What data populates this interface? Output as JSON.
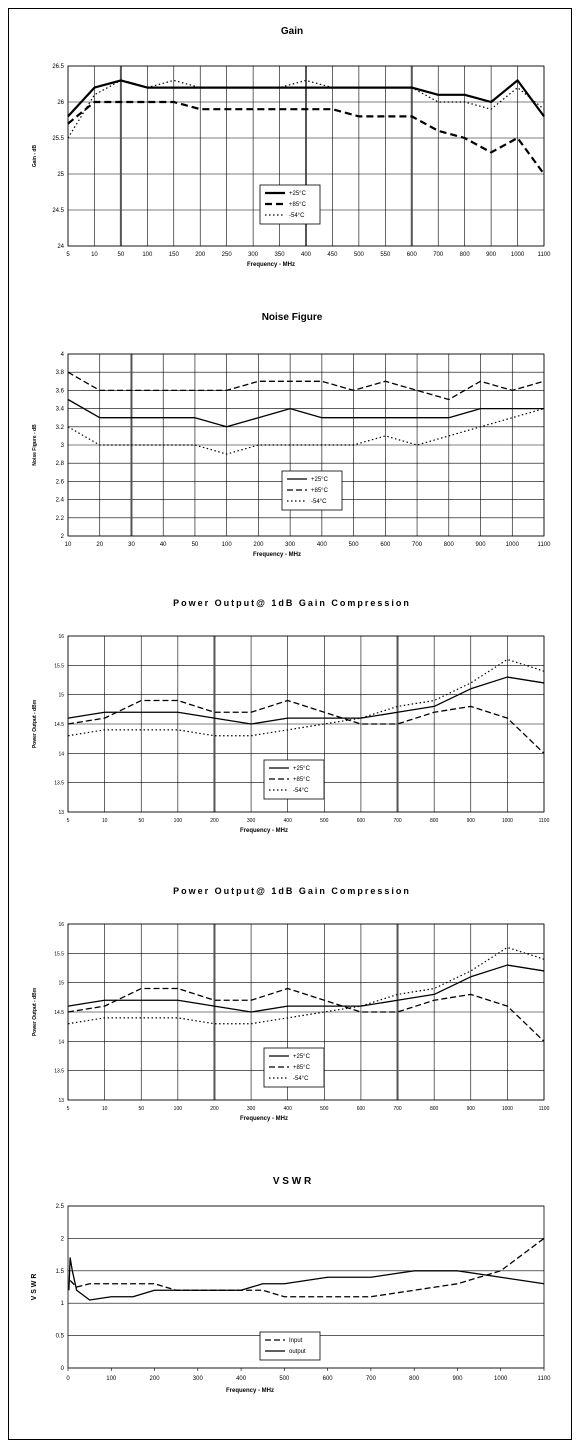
{
  "chart_data": [
    {
      "type": "line",
      "title": "Gain",
      "xlabel": "Frequency - MHz",
      "ylabel": "Gain - dB",
      "categories": [
        "5",
        "10",
        "50",
        "100",
        "150",
        "200",
        "250",
        "300",
        "350",
        "400",
        "450",
        "500",
        "550",
        "600",
        "700",
        "800",
        "900",
        "1000",
        "1100"
      ],
      "yticks": [
        "26.5",
        "26",
        "25.5",
        "25",
        "24.5",
        "24"
      ],
      "ylim": [
        24,
        26.5
      ],
      "grid": true,
      "legend_position": "center",
      "series": [
        {
          "name": "+25°C",
          "style": "solid-thick",
          "values": [
            25.8,
            26.2,
            26.3,
            26.2,
            26.2,
            26.2,
            26.2,
            26.2,
            26.2,
            26.2,
            26.2,
            26.2,
            26.2,
            26.2,
            26.1,
            26.1,
            26.0,
            26.3,
            25.8
          ]
        },
        {
          "name": "+85°C",
          "style": "dashed-thick",
          "values": [
            25.7,
            26.0,
            26.0,
            26.0,
            26.0,
            25.9,
            25.9,
            25.9,
            25.9,
            25.9,
            25.9,
            25.8,
            25.8,
            25.8,
            25.6,
            25.5,
            25.3,
            25.5,
            25.0
          ]
        },
        {
          "name": "-54°C",
          "style": "dotted",
          "values": [
            25.5,
            26.1,
            26.3,
            26.2,
            26.3,
            26.2,
            26.2,
            26.2,
            26.2,
            26.3,
            26.2,
            26.2,
            26.2,
            26.2,
            26.0,
            26.0,
            25.9,
            26.2,
            25.9
          ]
        }
      ]
    },
    {
      "type": "line",
      "title": "Noise Figure",
      "xlabel": "Frequency - MHz",
      "ylabel": "Noise Figure - dB",
      "categories": [
        "10",
        "20",
        "30",
        "40",
        "50",
        "100",
        "200",
        "300",
        "400",
        "500",
        "600",
        "700",
        "800",
        "900",
        "1000",
        "1100"
      ],
      "yticks": [
        "4",
        "3.8",
        "3.6",
        "3.4",
        "3.2",
        "3",
        "2.8",
        "2.6",
        "2.4",
        "2.2",
        "2"
      ],
      "ylim": [
        2,
        4
      ],
      "grid": true,
      "legend_position": "bottom-center",
      "series": [
        {
          "name": "+25°C",
          "style": "solid",
          "values": [
            3.5,
            3.3,
            3.3,
            3.3,
            3.3,
            3.2,
            3.3,
            3.4,
            3.3,
            3.3,
            3.3,
            3.3,
            3.3,
            3.4,
            3.4,
            3.4
          ]
        },
        {
          "name": "+85°C",
          "style": "dashed",
          "values": [
            3.8,
            3.6,
            3.6,
            3.6,
            3.6,
            3.6,
            3.7,
            3.7,
            3.7,
            3.6,
            3.7,
            3.6,
            3.5,
            3.7,
            3.6,
            3.7
          ]
        },
        {
          "name": "-54°C",
          "style": "dotted",
          "values": [
            3.2,
            3.0,
            3.0,
            3.0,
            3.0,
            2.9,
            3.0,
            3.0,
            3.0,
            3.0,
            3.1,
            3.0,
            3.1,
            3.2,
            3.3,
            3.4
          ]
        }
      ]
    },
    {
      "type": "line",
      "title": "Power Output@ 1dB Gain Compression",
      "xlabel": "Frequency - MHz",
      "ylabel": "Power Output - dBm",
      "categories": [
        "5",
        "10",
        "50",
        "100",
        "200",
        "300",
        "400",
        "500",
        "600",
        "700",
        "800",
        "900",
        "1000",
        "1100"
      ],
      "yticks": [
        "16",
        "15.5",
        "15",
        "14.5",
        "14",
        "13.5",
        "13"
      ],
      "ylim": [
        13,
        16
      ],
      "grid": true,
      "legend_position": "bottom-center",
      "series": [
        {
          "name": "+25°C",
          "style": "solid",
          "values": [
            14.6,
            14.7,
            14.7,
            14.7,
            14.6,
            14.5,
            14.6,
            14.6,
            14.6,
            14.7,
            14.8,
            15.1,
            15.3,
            15.2
          ]
        },
        {
          "name": "+85°C",
          "style": "dashed",
          "values": [
            14.5,
            14.6,
            14.9,
            14.9,
            14.7,
            14.7,
            14.9,
            14.7,
            14.5,
            14.5,
            14.7,
            14.8,
            14.6,
            14.0
          ]
        },
        {
          "name": "-54°C",
          "style": "dotted",
          "values": [
            14.3,
            14.4,
            14.4,
            14.4,
            14.3,
            14.3,
            14.4,
            14.5,
            14.6,
            14.8,
            14.9,
            15.2,
            15.6,
            15.4
          ]
        }
      ]
    },
    {
      "type": "line",
      "title": "Power Output@ 1dB Gain Compression",
      "xlabel": "Frequency - MHz",
      "ylabel": "Power Output - dBm",
      "categories": [
        "5",
        "10",
        "50",
        "100",
        "200",
        "300",
        "400",
        "500",
        "600",
        "700",
        "800",
        "900",
        "1000",
        "1100"
      ],
      "yticks": [
        "16",
        "15.5",
        "15",
        "14.5",
        "14",
        "13.5",
        "13"
      ],
      "ylim": [
        13,
        16
      ],
      "grid": true,
      "legend_position": "bottom-center",
      "series": [
        {
          "name": "+25°C",
          "style": "solid",
          "values": [
            14.6,
            14.7,
            14.7,
            14.7,
            14.6,
            14.5,
            14.6,
            14.6,
            14.6,
            14.7,
            14.8,
            15.1,
            15.3,
            15.2
          ]
        },
        {
          "name": "+85°C",
          "style": "dashed",
          "values": [
            14.5,
            14.6,
            14.9,
            14.9,
            14.7,
            14.7,
            14.9,
            14.7,
            14.5,
            14.5,
            14.7,
            14.8,
            14.6,
            14.0
          ]
        },
        {
          "name": "-54°C",
          "style": "dotted",
          "values": [
            14.3,
            14.4,
            14.4,
            14.4,
            14.3,
            14.3,
            14.4,
            14.5,
            14.6,
            14.8,
            14.9,
            15.2,
            15.6,
            15.4
          ]
        }
      ]
    },
    {
      "type": "line",
      "title": "V S W R",
      "xlabel": "Frequency - MHz",
      "ylabel": "V S W R",
      "xticks": [
        "0",
        "100",
        "200",
        "300",
        "400",
        "500",
        "600",
        "700",
        "800",
        "900",
        "1000",
        "1100"
      ],
      "yticks": [
        "2.5",
        "2",
        "1.5",
        "1",
        "0.5",
        "0"
      ],
      "xlim": [
        0,
        1100
      ],
      "ylim": [
        0,
        2.5
      ],
      "grid": "horizontal",
      "legend_position": "bottom-center",
      "series": [
        {
          "name": "Input",
          "style": "dashed",
          "x": [
            5,
            20,
            50,
            100,
            150,
            200,
            250,
            300,
            350,
            400,
            450,
            500,
            550,
            600,
            650,
            700,
            750,
            800,
            850,
            900,
            950,
            1000,
            1050,
            1100
          ],
          "y": [
            1.35,
            1.25,
            1.3,
            1.3,
            1.3,
            1.3,
            1.2,
            1.2,
            1.2,
            1.2,
            1.2,
            1.1,
            1.1,
            1.1,
            1.1,
            1.1,
            1.15,
            1.2,
            1.25,
            1.3,
            1.4,
            1.5,
            1.75,
            2.0
          ]
        },
        {
          "name": "output",
          "style": "solid",
          "x": [
            2,
            5,
            10,
            20,
            50,
            100,
            150,
            200,
            250,
            300,
            350,
            400,
            450,
            500,
            550,
            600,
            650,
            700,
            750,
            800,
            850,
            900,
            950,
            1000,
            1050,
            1100
          ],
          "y": [
            1.2,
            1.7,
            1.5,
            1.2,
            1.05,
            1.1,
            1.1,
            1.2,
            1.2,
            1.2,
            1.2,
            1.2,
            1.3,
            1.3,
            1.35,
            1.4,
            1.4,
            1.4,
            1.45,
            1.5,
            1.5,
            1.5,
            1.45,
            1.4,
            1.35,
            1.3
          ]
        }
      ]
    }
  ]
}
